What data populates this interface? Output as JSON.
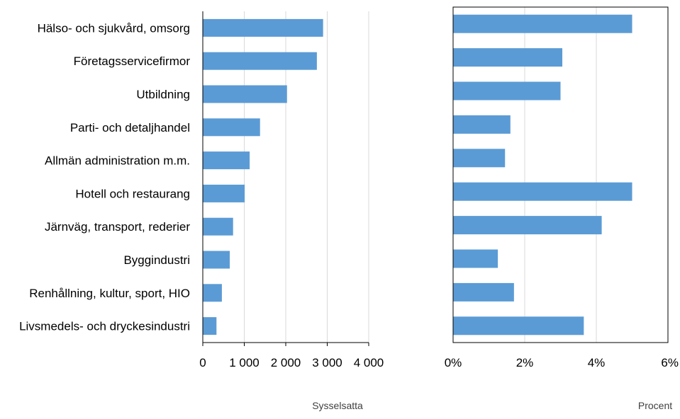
{
  "chart_data": [
    {
      "type": "bar",
      "orientation": "horizontal",
      "categories": [
        "Hälso- och sjukvård, omsorg",
        "Företagsservicefirmor",
        "Utbildning",
        "Parti- och detaljhandel",
        "Allmän administration m.m.",
        "Hotell och restaurang",
        "Järnväg, transport, rederier",
        "Byggindustri",
        "Renhållning, kultur, sport, HIO",
        "Livsmedels- och dryckesindustri"
      ],
      "values": [
        2900,
        2750,
        2030,
        1380,
        1130,
        1010,
        730,
        650,
        460,
        330
      ],
      "xlim": [
        0,
        4000
      ],
      "xticks": [
        0,
        1000,
        2000,
        3000,
        4000
      ],
      "xtick_labels": [
        "0",
        "1 000",
        "2 000",
        "3 000",
        "4 000"
      ],
      "xlabel": "Sysselsatta",
      "grid": "vertical",
      "bar_color": "#5b9bd5"
    },
    {
      "type": "bar",
      "orientation": "horizontal",
      "categories": [
        "Hälso- och sjukvård, omsorg",
        "Företagsservicefirmor",
        "Utbildning",
        "Parti- och detaljhandel",
        "Allmän administration m.m.",
        "Hotell och restaurang",
        "Järnväg, transport, rederier",
        "Byggindustri",
        "Renhållning, kultur, sport, HIO",
        "Livsmedels- och dryckesindustri"
      ],
      "values": [
        5.0,
        3.05,
        3.0,
        1.6,
        1.45,
        5.0,
        4.15,
        1.25,
        1.7,
        3.65
      ],
      "xlim": [
        0,
        6
      ],
      "xticks": [
        0,
        2,
        4,
        6
      ],
      "xtick_labels": [
        "0%",
        "2%",
        "4%",
        "6%"
      ],
      "xlabel": "Procent",
      "grid": "vertical",
      "bar_color": "#5b9bd5"
    }
  ]
}
